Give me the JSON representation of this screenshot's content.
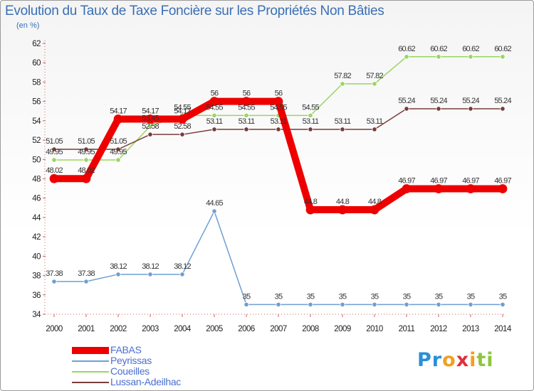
{
  "chart_data": {
    "type": "line",
    "title": "Evolution du Taux de Taxe Foncière sur les Propriétés Non Bâties",
    "subtitle": "(en %)",
    "xlabel": "",
    "ylabel": "",
    "categories": [
      "2000",
      "2001",
      "2002",
      "2003",
      "2004",
      "2005",
      "2006",
      "2007",
      "2008",
      "2009",
      "2010",
      "2011",
      "2012",
      "2013",
      "2014"
    ],
    "ylim": [
      34,
      62
    ],
    "yticks": [
      34,
      36,
      38,
      40,
      42,
      44,
      46,
      48,
      50,
      52,
      54,
      56,
      58,
      60,
      62
    ],
    "grid": false,
    "legend": "bottom-left",
    "series": [
      {
        "name": "FABAS",
        "color": "#ee0000",
        "values": [
          48.02,
          48.02,
          54.17,
          54.17,
          54.17,
          56,
          56,
          56,
          44.8,
          44.8,
          44.8,
          46.97,
          46.97,
          46.97,
          46.97
        ],
        "labels": [
          "48.02",
          "48.02",
          "54.17",
          "54.17",
          "54.17",
          "56",
          "56",
          "56",
          "44.8",
          "44.8",
          "44.8",
          "46.97",
          "46.97",
          "46.97",
          "46.97"
        ]
      },
      {
        "name": "Peyrissas",
        "color": "#6e9fd2",
        "values": [
          37.38,
          37.38,
          38.12,
          38.12,
          38.12,
          44.65,
          35,
          35,
          35,
          35,
          35,
          35,
          35,
          35,
          35
        ],
        "labels": [
          "37.38",
          "37.38",
          "38.12",
          "38.12",
          "38.12",
          "44.65",
          "35",
          "35",
          "35",
          "35",
          "35",
          "35",
          "35",
          "35",
          "35"
        ]
      },
      {
        "name": "Coueilles",
        "color": "#9ad65e",
        "values": [
          49.95,
          49.95,
          49.95,
          53.45,
          54.55,
          54.55,
          54.55,
          54.55,
          54.55,
          57.82,
          57.82,
          60.62,
          60.62,
          60.62,
          60.62
        ],
        "labels": [
          "49.95",
          "49.95",
          "49.95",
          "53.45",
          "54.55",
          "54.55",
          "54.55",
          "54.55",
          "54.55",
          "57.82",
          "57.82",
          "60.62",
          "60.62",
          "60.62",
          "60.62"
        ]
      },
      {
        "name": "Lussan-Adeilhac",
        "color": "#7a3b3b",
        "values": [
          51.05,
          51.05,
          51.05,
          52.58,
          52.58,
          53.11,
          53.11,
          53.11,
          53.11,
          53.11,
          53.11,
          55.24,
          55.24,
          55.24,
          55.24
        ],
        "labels": [
          "51.05",
          "51.05",
          "51.05",
          "52.58",
          "52.58",
          "53.11",
          "53.11",
          "53.11",
          "53.11",
          "53.11",
          "53.11",
          "55.24",
          "55.24",
          "55.24",
          "55.24"
        ]
      }
    ]
  },
  "logo": {
    "letters": [
      "P",
      "r",
      "o",
      "x",
      "i",
      "t",
      "i"
    ],
    "colors": [
      "#2a8fd6",
      "#2a8fd6",
      "#f0a020",
      "#e0303c",
      "#f0a020",
      "#8cc63f",
      "#8cc63f"
    ]
  }
}
